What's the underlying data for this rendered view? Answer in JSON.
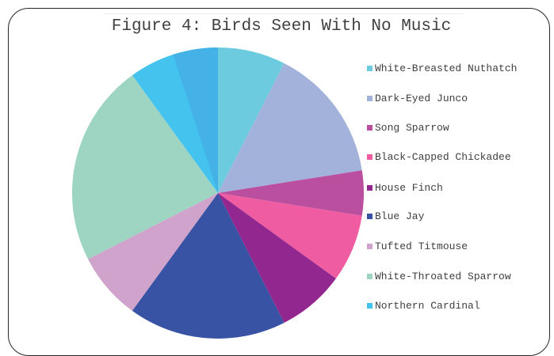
{
  "chart_data": {
    "type": "pie",
    "title": "Figure 4: Birds Seen With No Music",
    "legend_position": "right",
    "categories": [
      "White-Breasted Nuthatch",
      "Dark-Eyed Junco",
      "Song Sparrow",
      "Black-Capped Chickadee",
      "House Finch",
      "Blue Jay",
      "Tufted Titmouse",
      "White-Throated Sparrow",
      "Northern Cardinal"
    ],
    "values": [
      3,
      6,
      2,
      3,
      3,
      7,
      3,
      9,
      4
    ],
    "colors": [
      "#6ccbde",
      "#a3b2da",
      "#bb4f9f",
      "#ef5ca1",
      "#92278f",
      "#3953a4",
      "#cfa3cc",
      "#9dd4c2",
      "#45c3ef"
    ],
    "notes": "Northern Cardinal slice is split into two shaded halves in the original; values estimated from slice angles."
  }
}
